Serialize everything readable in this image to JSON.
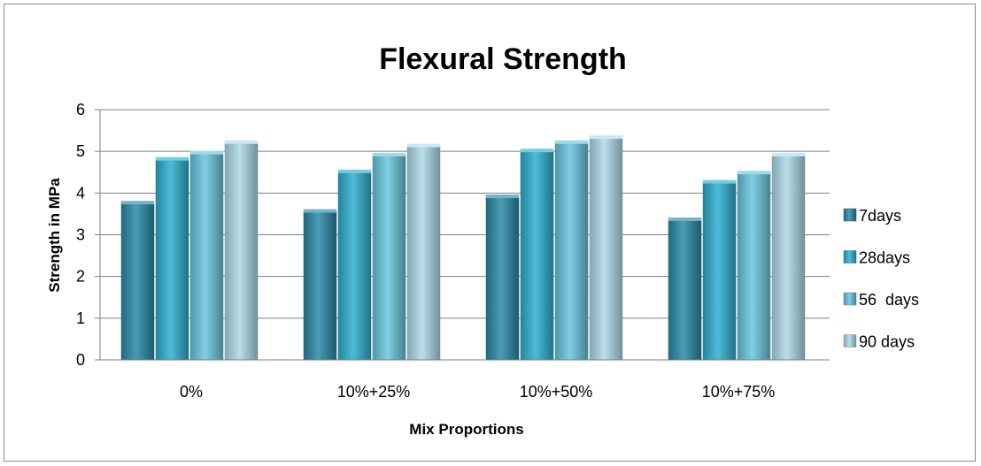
{
  "chart_data": {
    "type": "bar",
    "title": "Flexural Strength",
    "xlabel": "Mix Proportions",
    "ylabel": "Strength in MPa",
    "ylim": [
      0,
      6
    ],
    "yticks": [
      "0",
      "1",
      "2",
      "3",
      "4",
      "5",
      "6"
    ],
    "grid": true,
    "legend_position": "right",
    "categories": [
      "0%",
      "10%+25%",
      "10%+50%",
      "10%+75%"
    ],
    "series": [
      {
        "name": "7days",
        "values": [
          3.75,
          3.55,
          3.9,
          3.35
        ],
        "color": "#2a8aa8"
      },
      {
        "name": "28days",
        "values": [
          4.8,
          4.5,
          5.0,
          4.25
        ],
        "color": "#2fb0d0"
      },
      {
        "name": "56  days",
        "values": [
          4.95,
          4.9,
          5.2,
          4.47
        ],
        "color": "#6ac6df"
      },
      {
        "name": "90 days",
        "values": [
          5.2,
          5.12,
          5.32,
          4.9
        ],
        "color": "#aedbe9"
      }
    ]
  }
}
